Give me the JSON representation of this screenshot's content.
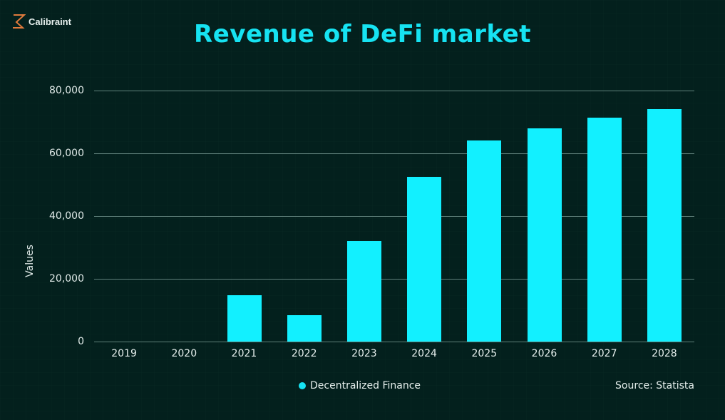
{
  "brand": {
    "name": "Calibraint",
    "logo_icon": "z-bolt-logo-icon",
    "logo_color": "#e07a3c"
  },
  "colors": {
    "background": "#03201d",
    "accent": "#12f0ff",
    "title": "#16e3f2",
    "grid": "#5f807a"
  },
  "source": {
    "label": "Source:",
    "value": "Statista",
    "text": "Source:  Statista"
  },
  "chart_data": {
    "type": "bar",
    "title": "Revenue of DeFi market",
    "xlabel": "",
    "ylabel": "Values",
    "categories": [
      "2019",
      "2020",
      "2021",
      "2022",
      "2023",
      "2024",
      "2025",
      "2026",
      "2027",
      "2028"
    ],
    "series": [
      {
        "name": "Decentralized Finance",
        "color": "#12f0ff",
        "values": [
          0,
          0,
          14800,
          8400,
          32000,
          52500,
          64100,
          68000,
          71400,
          74100
        ]
      }
    ],
    "ylim": [
      0,
      80000
    ],
    "yticks": [
      0,
      20000,
      40000,
      60000,
      80000
    ],
    "ytick_labels": [
      "0",
      "20,000",
      "40,000",
      "60,000",
      "80,000"
    ],
    "grid": true,
    "legend_position": "bottom-center"
  }
}
